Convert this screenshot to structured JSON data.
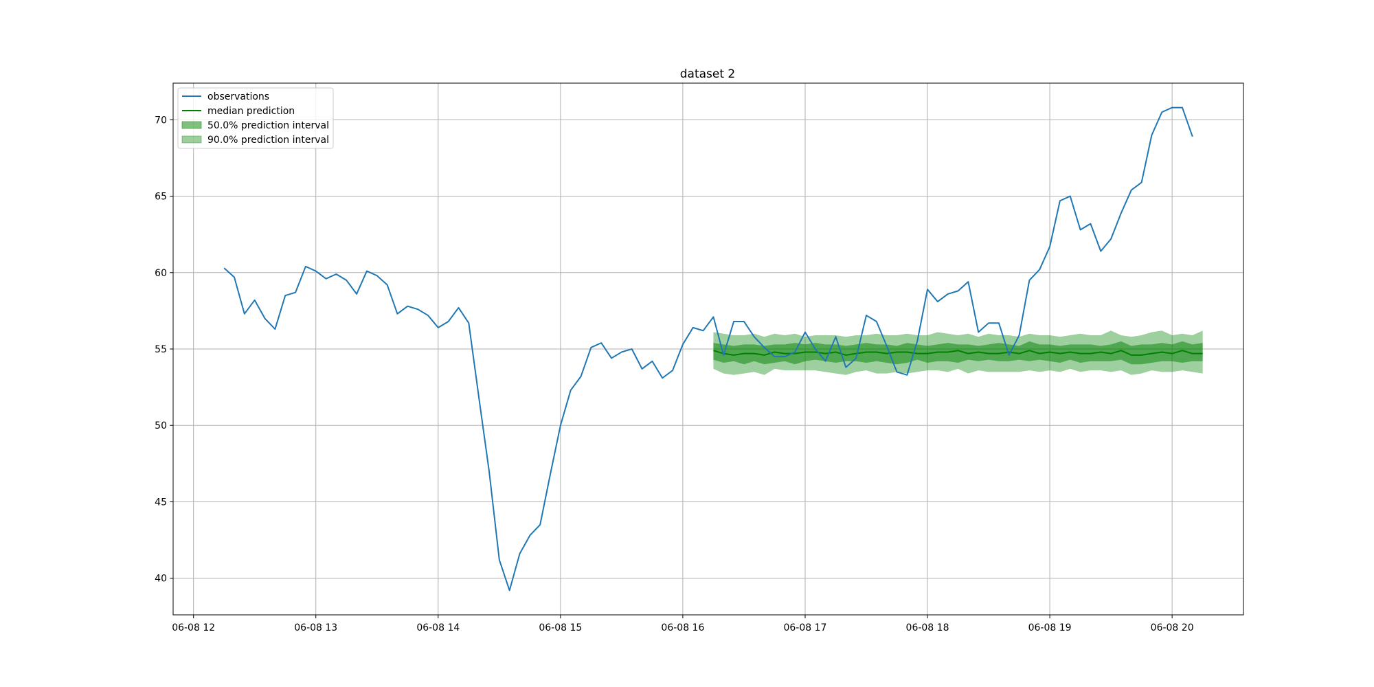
{
  "chart_data": {
    "type": "line",
    "title": "dataset 2",
    "xlabel": "",
    "ylabel": "",
    "grid": true,
    "legend_position": "top-left",
    "x_axis": {
      "type": "datetime",
      "range": [
        "06-08 11:50",
        "06-08 20:35"
      ],
      "ticks": [
        {
          "x": "06-08 12:00",
          "label": "06-08 12"
        },
        {
          "x": "06-08 13:00",
          "label": "06-08 13"
        },
        {
          "x": "06-08 14:00",
          "label": "06-08 14"
        },
        {
          "x": "06-08 15:00",
          "label": "06-08 15"
        },
        {
          "x": "06-08 16:00",
          "label": "06-08 16"
        },
        {
          "x": "06-08 17:00",
          "label": "06-08 17"
        },
        {
          "x": "06-08 18:00",
          "label": "06-08 18"
        },
        {
          "x": "06-08 19:00",
          "label": "06-08 19"
        },
        {
          "x": "06-08 20:00",
          "label": "06-08 20"
        }
      ]
    },
    "y_axis": {
      "range": [
        37.6,
        72.4
      ],
      "ticks": [
        40,
        45,
        50,
        55,
        60,
        65,
        70
      ]
    },
    "colors": {
      "observations": "#1f77b4",
      "median": "#008000",
      "interval": "#008000"
    },
    "legend": [
      {
        "label": "observations",
        "kind": "line",
        "color": "#1f77b4"
      },
      {
        "label": "median prediction",
        "kind": "line",
        "color": "#008000"
      },
      {
        "label": "50.0% prediction interval",
        "kind": "patch",
        "color": "#008000",
        "opacity": 0.5
      },
      {
        "label": "90.0% prediction interval",
        "kind": "patch",
        "color": "#008000",
        "opacity": 0.38
      }
    ],
    "observations": {
      "name": "observations",
      "start": "06-08 12:15",
      "step_minutes": 5,
      "values": [
        60.3,
        59.7,
        57.3,
        58.2,
        57.0,
        56.3,
        58.5,
        58.7,
        60.4,
        60.1,
        59.6,
        59.9,
        59.5,
        58.6,
        60.1,
        59.8,
        59.2,
        57.3,
        57.8,
        57.6,
        57.2,
        56.4,
        56.8,
        57.7,
        56.7,
        51.8,
        47.0,
        41.2,
        39.2,
        41.6,
        42.8,
        43.5,
        46.8,
        50.0,
        52.3,
        53.2,
        55.1,
        55.4,
        54.4,
        54.8,
        55.0,
        53.7,
        54.2,
        53.1,
        53.6,
        55.3,
        56.4,
        56.2,
        57.1,
        54.6,
        56.8,
        56.8,
        55.8,
        55.1,
        54.5,
        54.5,
        54.8,
        56.1,
        55.0,
        54.2,
        55.8,
        53.8,
        54.4,
        57.2,
        56.8,
        55.2,
        53.5,
        53.3,
        55.5,
        58.9,
        58.1,
        58.6,
        58.8,
        59.4,
        56.1,
        56.7,
        56.7,
        54.6,
        55.9,
        59.5,
        60.2,
        61.7,
        64.7,
        65.0,
        62.8,
        63.2,
        61.4,
        62.2,
        63.9,
        65.4,
        65.9,
        69.0,
        70.5,
        70.8,
        70.8,
        68.9
      ]
    },
    "prediction": {
      "start": "06-08 16:15",
      "step_minutes": 5,
      "median": [
        54.9,
        54.7,
        54.6,
        54.7,
        54.7,
        54.6,
        54.8,
        54.7,
        54.7,
        54.8,
        54.8,
        54.7,
        54.8,
        54.6,
        54.7,
        54.8,
        54.8,
        54.7,
        54.8,
        54.8,
        54.7,
        54.7,
        54.8,
        54.8,
        54.9,
        54.7,
        54.8,
        54.7,
        54.7,
        54.8,
        54.7,
        54.9,
        54.7,
        54.8,
        54.7,
        54.8,
        54.7,
        54.7,
        54.8,
        54.7,
        54.9,
        54.6,
        54.6,
        54.7,
        54.8,
        54.7,
        54.9,
        54.7,
        54.7
      ],
      "p25": [
        54.3,
        54.1,
        54.2,
        54.0,
        54.2,
        54.0,
        54.1,
        54.2,
        54.0,
        54.2,
        54.3,
        54.2,
        54.1,
        54.2,
        54.2,
        54.1,
        54.2,
        54.1,
        54.0,
        54.1,
        54.3,
        54.1,
        54.2,
        54.2,
        54.1,
        54.3,
        54.2,
        54.3,
        54.2,
        54.2,
        54.3,
        54.2,
        54.3,
        54.2,
        54.1,
        54.3,
        54.1,
        54.2,
        54.2,
        54.2,
        54.3,
        54.0,
        54.0,
        54.1,
        54.2,
        54.2,
        54.1,
        54.2,
        54.2
      ],
      "p75": [
        55.4,
        55.3,
        55.2,
        55.3,
        55.3,
        55.2,
        55.3,
        55.3,
        55.4,
        55.3,
        55.4,
        55.3,
        55.3,
        55.2,
        55.3,
        55.4,
        55.3,
        55.3,
        55.2,
        55.4,
        55.3,
        55.2,
        55.3,
        55.4,
        55.3,
        55.3,
        55.2,
        55.3,
        55.4,
        55.3,
        55.2,
        55.5,
        55.3,
        55.3,
        55.2,
        55.3,
        55.3,
        55.3,
        55.2,
        55.3,
        55.5,
        55.2,
        55.3,
        55.3,
        55.4,
        55.3,
        55.5,
        55.3,
        55.4
      ],
      "p5": [
        53.7,
        53.4,
        53.3,
        53.4,
        53.5,
        53.3,
        53.7,
        53.6,
        53.6,
        53.6,
        53.6,
        53.5,
        53.4,
        53.3,
        53.5,
        53.6,
        53.4,
        53.4,
        53.5,
        53.4,
        53.5,
        53.6,
        53.6,
        53.5,
        53.7,
        53.4,
        53.6,
        53.5,
        53.5,
        53.5,
        53.5,
        53.6,
        53.5,
        53.6,
        53.5,
        53.7,
        53.5,
        53.6,
        53.6,
        53.5,
        53.6,
        53.3,
        53.4,
        53.6,
        53.5,
        53.5,
        53.6,
        53.5,
        53.4
      ],
      "p95": [
        56.1,
        56.0,
        55.9,
        55.9,
        56.0,
        55.8,
        56.0,
        55.9,
        56.0,
        55.8,
        55.9,
        55.9,
        55.9,
        55.8,
        55.9,
        55.9,
        56.0,
        55.9,
        55.9,
        56.0,
        55.9,
        55.9,
        56.1,
        56.0,
        55.9,
        56.0,
        55.8,
        56.0,
        55.9,
        55.9,
        55.8,
        56.0,
        55.9,
        55.9,
        55.8,
        55.9,
        56.0,
        55.9,
        55.9,
        56.2,
        55.9,
        55.8,
        55.9,
        56.1,
        56.2,
        55.9,
        56.0,
        55.9,
        56.2
      ]
    }
  }
}
